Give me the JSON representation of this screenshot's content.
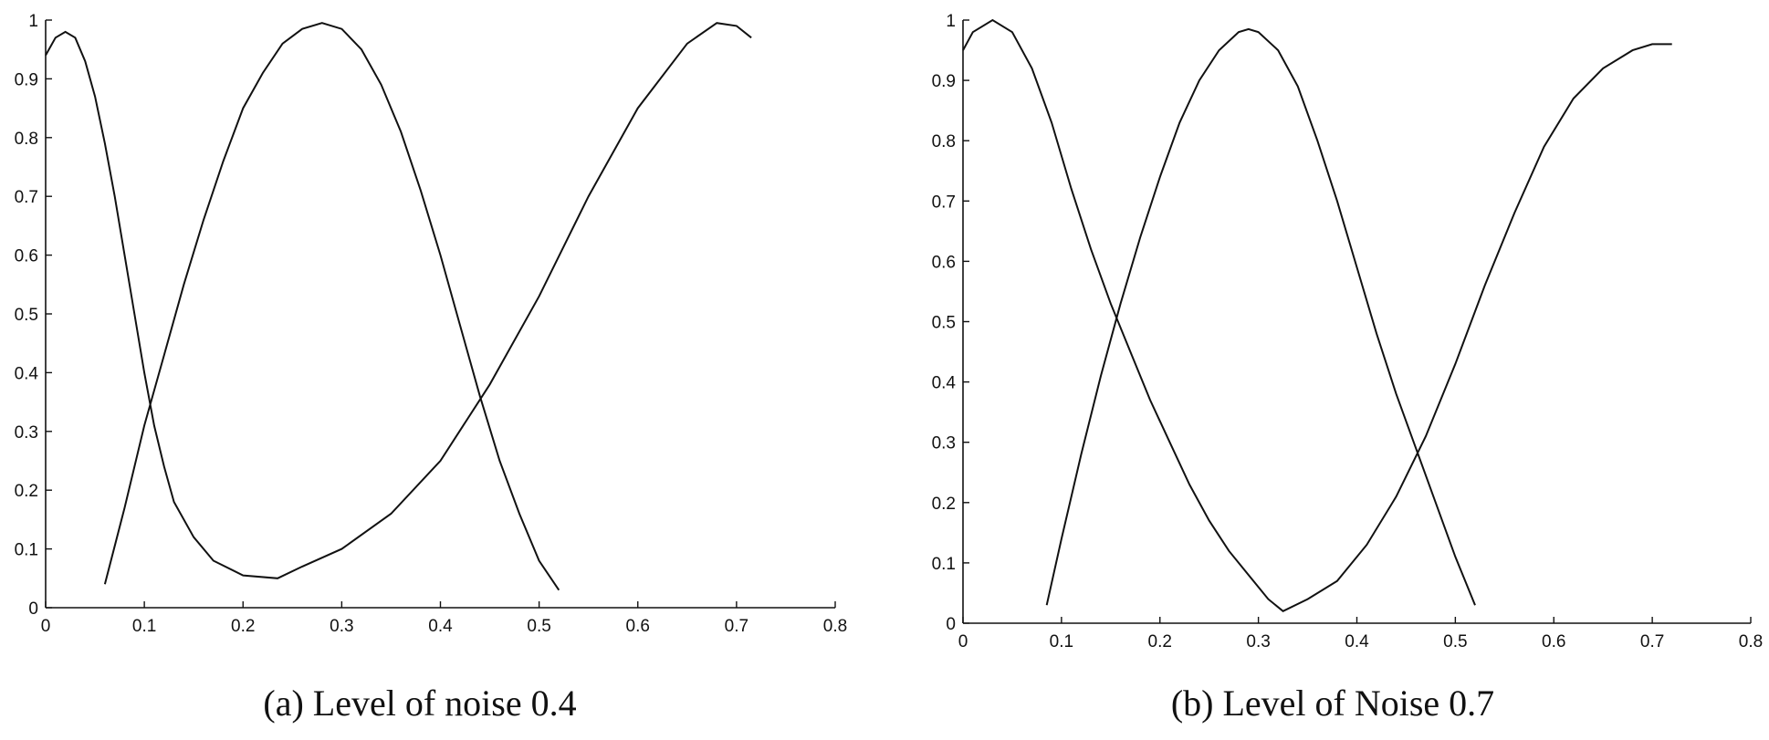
{
  "chart_data": [
    {
      "type": "line",
      "caption": "(a) Level of noise 0.4",
      "xlim": [
        0,
        0.8
      ],
      "ylim": [
        0,
        1
      ],
      "x_tick_labels": [
        "0",
        "0.1",
        "0.2",
        "0.3",
        "0.4",
        "0.5",
        "0.6",
        "0.7",
        "0.8"
      ],
      "y_tick_labels": [
        "0",
        "0.1",
        "0.2",
        "0.3",
        "0.4",
        "0.5",
        "0.6",
        "0.7",
        "0.8",
        "0.9",
        "1"
      ],
      "grid": false,
      "series": [
        {
          "points": [
            [
              0.0,
              0.94
            ],
            [
              0.01,
              0.97
            ],
            [
              0.02,
              0.98
            ],
            [
              0.03,
              0.97
            ],
            [
              0.04,
              0.93
            ],
            [
              0.05,
              0.87
            ],
            [
              0.06,
              0.79
            ],
            [
              0.07,
              0.7
            ],
            [
              0.08,
              0.6
            ],
            [
              0.09,
              0.5
            ],
            [
              0.1,
              0.4
            ],
            [
              0.11,
              0.31
            ],
            [
              0.12,
              0.24
            ],
            [
              0.13,
              0.18
            ],
            [
              0.15,
              0.12
            ],
            [
              0.17,
              0.08
            ],
            [
              0.2,
              0.055
            ],
            [
              0.235,
              0.05
            ],
            [
              0.26,
              0.07
            ],
            [
              0.3,
              0.1
            ],
            [
              0.35,
              0.16
            ],
            [
              0.4,
              0.25
            ],
            [
              0.45,
              0.38
            ],
            [
              0.5,
              0.53
            ],
            [
              0.55,
              0.7
            ],
            [
              0.6,
              0.85
            ],
            [
              0.65,
              0.96
            ],
            [
              0.68,
              0.995
            ],
            [
              0.7,
              0.99
            ],
            [
              0.715,
              0.97
            ]
          ]
        },
        {
          "points": [
            [
              0.06,
              0.04
            ],
            [
              0.08,
              0.17
            ],
            [
              0.1,
              0.31
            ],
            [
              0.12,
              0.43
            ],
            [
              0.14,
              0.55
            ],
            [
              0.16,
              0.66
            ],
            [
              0.18,
              0.76
            ],
            [
              0.2,
              0.85
            ],
            [
              0.22,
              0.91
            ],
            [
              0.24,
              0.96
            ],
            [
              0.26,
              0.985
            ],
            [
              0.28,
              0.995
            ],
            [
              0.3,
              0.985
            ],
            [
              0.32,
              0.95
            ],
            [
              0.34,
              0.89
            ],
            [
              0.36,
              0.81
            ],
            [
              0.38,
              0.71
            ],
            [
              0.4,
              0.6
            ],
            [
              0.42,
              0.48
            ],
            [
              0.44,
              0.36
            ],
            [
              0.46,
              0.25
            ],
            [
              0.48,
              0.16
            ],
            [
              0.5,
              0.08
            ],
            [
              0.52,
              0.03
            ]
          ]
        }
      ]
    },
    {
      "type": "line",
      "caption": "(b) Level of Noise 0.7",
      "xlim": [
        0,
        0.8
      ],
      "ylim": [
        0,
        1
      ],
      "x_tick_labels": [
        "0",
        "0.1",
        "0.2",
        "0.3",
        "0.4",
        "0.5",
        "0.6",
        "0.7",
        "0.8"
      ],
      "y_tick_labels": [
        "0",
        "0.1",
        "0.2",
        "0.3",
        "0.4",
        "0.5",
        "0.6",
        "0.7",
        "0.8",
        "0.9",
        "1"
      ],
      "grid": false,
      "series": [
        {
          "points": [
            [
              0.0,
              0.95
            ],
            [
              0.01,
              0.98
            ],
            [
              0.03,
              1.0
            ],
            [
              0.05,
              0.98
            ],
            [
              0.07,
              0.92
            ],
            [
              0.09,
              0.83
            ],
            [
              0.11,
              0.72
            ],
            [
              0.13,
              0.62
            ],
            [
              0.15,
              0.53
            ],
            [
              0.17,
              0.45
            ],
            [
              0.19,
              0.37
            ],
            [
              0.21,
              0.3
            ],
            [
              0.23,
              0.23
            ],
            [
              0.25,
              0.17
            ],
            [
              0.27,
              0.12
            ],
            [
              0.29,
              0.08
            ],
            [
              0.31,
              0.04
            ],
            [
              0.325,
              0.02
            ],
            [
              0.35,
              0.04
            ],
            [
              0.38,
              0.07
            ],
            [
              0.41,
              0.13
            ],
            [
              0.44,
              0.21
            ],
            [
              0.47,
              0.31
            ],
            [
              0.5,
              0.43
            ],
            [
              0.53,
              0.56
            ],
            [
              0.56,
              0.68
            ],
            [
              0.59,
              0.79
            ],
            [
              0.62,
              0.87
            ],
            [
              0.65,
              0.92
            ],
            [
              0.68,
              0.95
            ],
            [
              0.7,
              0.96
            ],
            [
              0.72,
              0.96
            ]
          ]
        },
        {
          "points": [
            [
              0.085,
              0.03
            ],
            [
              0.1,
              0.14
            ],
            [
              0.12,
              0.28
            ],
            [
              0.14,
              0.41
            ],
            [
              0.16,
              0.53
            ],
            [
              0.18,
              0.64
            ],
            [
              0.2,
              0.74
            ],
            [
              0.22,
              0.83
            ],
            [
              0.24,
              0.9
            ],
            [
              0.26,
              0.95
            ],
            [
              0.28,
              0.98
            ],
            [
              0.29,
              0.985
            ],
            [
              0.3,
              0.98
            ],
            [
              0.32,
              0.95
            ],
            [
              0.34,
              0.89
            ],
            [
              0.36,
              0.8
            ],
            [
              0.38,
              0.7
            ],
            [
              0.4,
              0.59
            ],
            [
              0.42,
              0.48
            ],
            [
              0.44,
              0.38
            ],
            [
              0.46,
              0.29
            ],
            [
              0.48,
              0.2
            ],
            [
              0.5,
              0.11
            ],
            [
              0.52,
              0.03
            ]
          ]
        }
      ]
    }
  ]
}
